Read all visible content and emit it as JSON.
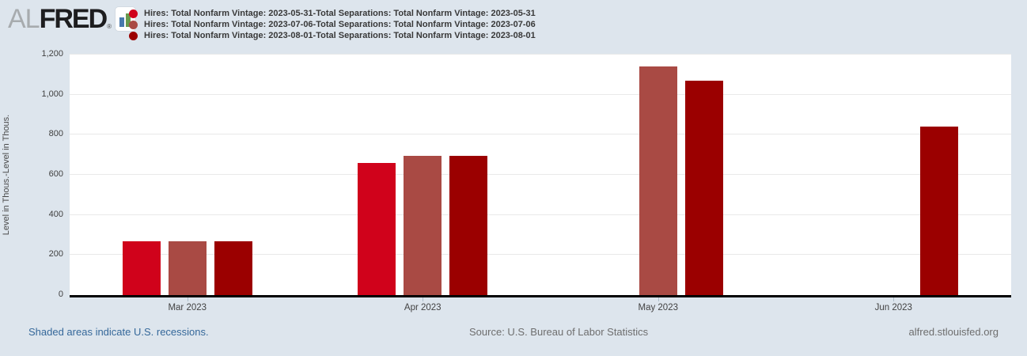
{
  "header": {
    "logo": {
      "al": "AL",
      "fred": "FRED",
      "reg": "®"
    },
    "legend": [
      {
        "label": "Hires: Total Nonfarm Vintage: 2023-05-31-Total Separations: Total Nonfarm Vintage: 2023-05-31",
        "color": "#d0021b"
      },
      {
        "label": "Hires: Total Nonfarm Vintage: 2023-07-06-Total Separations: Total Nonfarm Vintage: 2023-07-06",
        "color": "#a94a44"
      },
      {
        "label": "Hires: Total Nonfarm Vintage: 2023-08-01-Total Separations: Total Nonfarm Vintage: 2023-08-01",
        "color": "#9b0000"
      }
    ]
  },
  "chart_data": {
    "type": "bar",
    "title": "",
    "categories": [
      "Mar 2023",
      "Apr 2023",
      "May 2023",
      "Jun 2023"
    ],
    "series": [
      {
        "name": "Hires: Total Nonfarm Vintage: 2023-05-31-Total Separations: Total Nonfarm Vintage: 2023-05-31",
        "color": "#d0021b",
        "values": [
          270,
          660,
          null,
          null
        ]
      },
      {
        "name": "Hires: Total Nonfarm Vintage: 2023-07-06-Total Separations: Total Nonfarm Vintage: 2023-07-06",
        "color": "#a94a44",
        "values": [
          270,
          695,
          1140,
          null
        ]
      },
      {
        "name": "Hires: Total Nonfarm Vintage: 2023-08-01-Total Separations: Total Nonfarm Vintage: 2023-08-01",
        "color": "#9b0000",
        "values": [
          270,
          695,
          1070,
          840
        ]
      }
    ],
    "xlabel": "",
    "ylabel": "Level in Thous.-Level in Thous.",
    "ylim": [
      0,
      1200
    ],
    "yticks": [
      0,
      200,
      400,
      600,
      800,
      1000,
      1200
    ],
    "ytick_labels": [
      "0",
      "200",
      "400",
      "600",
      "800",
      "1,000",
      "1,200"
    ],
    "grid": true,
    "legend_position": "top"
  },
  "footer": {
    "recession_note": "Shaded areas indicate U.S. recessions.",
    "source": "Source: U.S. Bureau of Labor Statistics",
    "site": "alfred.stlouisfed.org"
  },
  "colors": {
    "page_background": "#dde5ed",
    "plot_background": "#ffffff",
    "axis_line": "#000000",
    "gridline": "#e9e9e9",
    "tick_text": "#404040",
    "note_blue": "#35689a",
    "footer_gray": "#6e6e6e",
    "logo_blue_bar": "#4779ad",
    "logo_green_bar": "#699a4d"
  }
}
